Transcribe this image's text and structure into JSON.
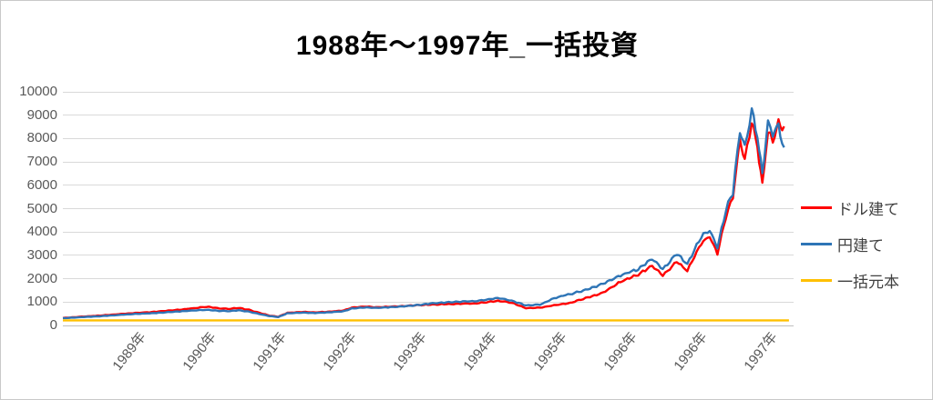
{
  "chart": {
    "title": "1988年～1997年_一括投資"
  },
  "chart_data": {
    "type": "line",
    "title": "1988年～1997年_一括投資",
    "grid": true,
    "legend_position": "right",
    "x_axis": {
      "tick_labels": [
        "1989年",
        "1990年",
        "1991年",
        "1992年",
        "1993年",
        "1994年",
        "1995年",
        "1996年",
        "1996年",
        "1997年"
      ],
      "note": "points use t in label-units from plot left edge; tick k sits at t = 1.04 + k"
    },
    "y_axis": {
      "min": 0,
      "max": 10000,
      "tick_step": 1000,
      "tick_labels": [
        "0",
        "1000",
        "2000",
        "3000",
        "4000",
        "5000",
        "6000",
        "7000",
        "8000",
        "9000",
        "10000"
      ]
    },
    "series": [
      {
        "name": "ドル建て",
        "color": "#ff0000",
        "points": [
          [
            0.0,
            300
          ],
          [
            0.3,
            360
          ],
          [
            0.6,
            420
          ],
          [
            1.0,
            510
          ],
          [
            1.3,
            560
          ],
          [
            1.6,
            640
          ],
          [
            1.9,
            730
          ],
          [
            2.05,
            780
          ],
          [
            2.2,
            720
          ],
          [
            2.35,
            690
          ],
          [
            2.5,
            730
          ],
          [
            2.65,
            650
          ],
          [
            2.8,
            520
          ],
          [
            2.95,
            400
          ],
          [
            3.07,
            350
          ],
          [
            3.2,
            520
          ],
          [
            3.4,
            560
          ],
          [
            3.6,
            540
          ],
          [
            3.8,
            570
          ],
          [
            4.0,
            620
          ],
          [
            4.12,
            740
          ],
          [
            4.3,
            790
          ],
          [
            4.5,
            760
          ],
          [
            4.7,
            790
          ],
          [
            4.9,
            820
          ],
          [
            5.05,
            850
          ],
          [
            5.3,
            880
          ],
          [
            5.6,
            900
          ],
          [
            5.9,
            930
          ],
          [
            6.2,
            1030
          ],
          [
            6.4,
            950
          ],
          [
            6.6,
            720
          ],
          [
            6.8,
            740
          ],
          [
            7.0,
            850
          ],
          [
            7.2,
            920
          ],
          [
            7.45,
            1150
          ],
          [
            7.7,
            1380
          ],
          [
            7.95,
            1850
          ],
          [
            8.2,
            2160
          ],
          [
            8.4,
            2550
          ],
          [
            8.55,
            2120
          ],
          [
            8.75,
            2700
          ],
          [
            8.9,
            2310
          ],
          [
            9.1,
            3500
          ],
          [
            9.22,
            3800
          ],
          [
            9.33,
            3050
          ],
          [
            9.45,
            4650
          ],
          [
            9.55,
            5500
          ],
          [
            9.65,
            7900
          ],
          [
            9.72,
            7100
          ],
          [
            9.82,
            8700
          ],
          [
            9.9,
            7700
          ],
          [
            9.97,
            5950
          ],
          [
            10.05,
            8300
          ],
          [
            10.12,
            7800
          ],
          [
            10.2,
            8600
          ],
          [
            10.28,
            8500
          ]
        ]
      },
      {
        "name": "円建て",
        "color": "#2e75b6",
        "points": [
          [
            0.0,
            290
          ],
          [
            0.3,
            340
          ],
          [
            0.6,
            390
          ],
          [
            1.0,
            470
          ],
          [
            1.3,
            510
          ],
          [
            1.6,
            570
          ],
          [
            1.9,
            630
          ],
          [
            2.05,
            650
          ],
          [
            2.2,
            610
          ],
          [
            2.35,
            590
          ],
          [
            2.5,
            630
          ],
          [
            2.65,
            570
          ],
          [
            2.8,
            470
          ],
          [
            2.95,
            380
          ],
          [
            3.07,
            340
          ],
          [
            3.2,
            500
          ],
          [
            3.4,
            530
          ],
          [
            3.6,
            515
          ],
          [
            3.8,
            545
          ],
          [
            4.0,
            590
          ],
          [
            4.12,
            700
          ],
          [
            4.3,
            750
          ],
          [
            4.5,
            735
          ],
          [
            4.7,
            770
          ],
          [
            4.9,
            810
          ],
          [
            5.05,
            855
          ],
          [
            5.3,
            940
          ],
          [
            5.6,
            990
          ],
          [
            5.9,
            1030
          ],
          [
            6.2,
            1150
          ],
          [
            6.4,
            1040
          ],
          [
            6.6,
            840
          ],
          [
            6.8,
            870
          ],
          [
            7.0,
            1150
          ],
          [
            7.2,
            1300
          ],
          [
            7.45,
            1500
          ],
          [
            7.7,
            1770
          ],
          [
            7.95,
            2120
          ],
          [
            8.2,
            2390
          ],
          [
            8.4,
            2860
          ],
          [
            8.55,
            2390
          ],
          [
            8.75,
            3050
          ],
          [
            8.9,
            2590
          ],
          [
            9.1,
            3800
          ],
          [
            9.22,
            4050
          ],
          [
            9.33,
            3300
          ],
          [
            9.45,
            4920
          ],
          [
            9.55,
            5700
          ],
          [
            9.65,
            8300
          ],
          [
            9.72,
            7600
          ],
          [
            9.82,
            9200
          ],
          [
            9.9,
            8100
          ],
          [
            9.97,
            6450
          ],
          [
            10.05,
            8700
          ],
          [
            10.12,
            8100
          ],
          [
            10.2,
            8500
          ],
          [
            10.28,
            7600
          ]
        ]
      },
      {
        "name": "一括元本",
        "color": "#ffc000",
        "points": [
          [
            0.0,
            200
          ],
          [
            10.35,
            200
          ]
        ]
      }
    ]
  },
  "colors": {
    "gridline": "#d9d9d9",
    "axis_line": "#bfbfbf",
    "tick_label": "#595959",
    "legend_label": "#404040",
    "title": "#000000"
  }
}
